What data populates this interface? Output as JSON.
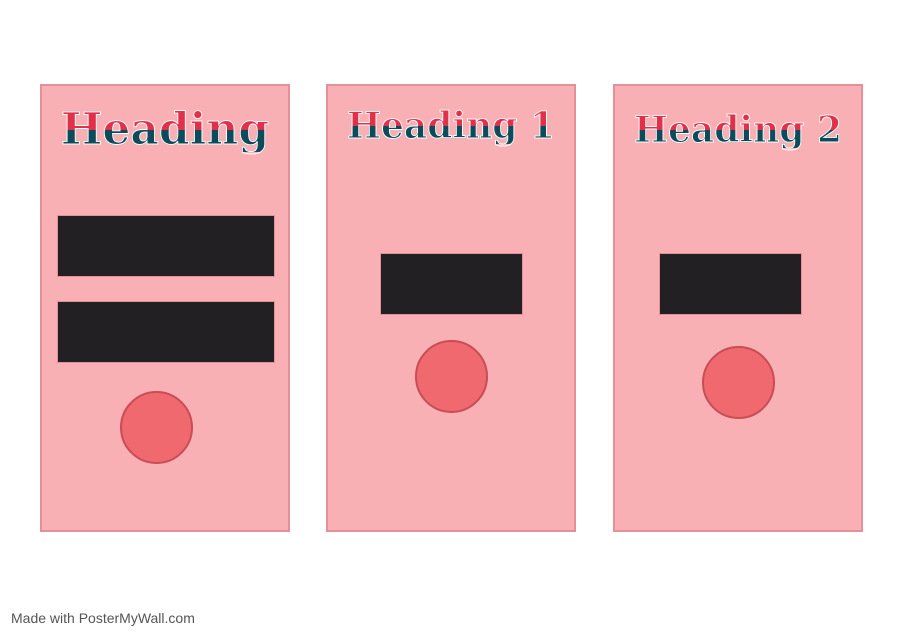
{
  "cards": [
    {
      "heading": "Heading"
    },
    {
      "heading": "Heading 1"
    },
    {
      "heading": "Heading 2"
    }
  ],
  "colors": {
    "card_fill": "#f8b0b5",
    "card_border": "#e3909a",
    "heading_top": "#e0304a",
    "heading_bottom": "#0d4a5a",
    "block_fill": "#222022",
    "circle_fill": "#f0696e"
  },
  "footer": {
    "text": "Made with PosterMyWall.com"
  }
}
